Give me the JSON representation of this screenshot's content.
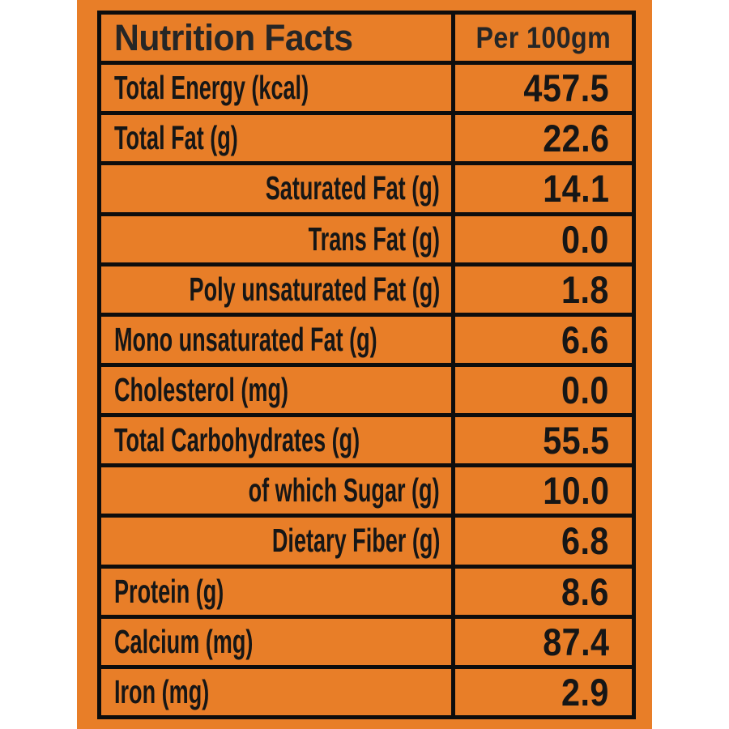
{
  "header": {
    "title": "Nutrition Facts",
    "column": "Per 100gm"
  },
  "rows": [
    {
      "label": "Total Energy (kcal)",
      "value": "457.5",
      "indent": false
    },
    {
      "label": "Total Fat (g)",
      "value": "22.6",
      "indent": false
    },
    {
      "label": "Saturated Fat (g)",
      "value": "14.1",
      "indent": true
    },
    {
      "label": "Trans Fat (g)",
      "value": "0.0",
      "indent": true
    },
    {
      "label": "Poly unsaturated Fat (g)",
      "value": "1.8",
      "indent": true
    },
    {
      "label": "Mono unsaturated Fat (g)",
      "value": "6.6",
      "indent": false
    },
    {
      "label": "Cholesterol (mg)",
      "value": "0.0",
      "indent": false
    },
    {
      "label": "Total Carbohydrates (g)",
      "value": "55.5",
      "indent": false
    },
    {
      "label": "of which Sugar (g)",
      "value": "10.0",
      "indent": true
    },
    {
      "label": "Dietary Fiber (g)",
      "value": "6.8",
      "indent": true
    },
    {
      "label": "Protein (g)",
      "value": "8.6",
      "indent": false
    },
    {
      "label": "Calcium (mg)",
      "value": "87.4",
      "indent": false
    },
    {
      "label": "Iron (mg)",
      "value": "2.9",
      "indent": false
    }
  ],
  "colors": {
    "panel_orange": "#E87E28",
    "line_black": "#0D0D0D",
    "text_dark": "#161616",
    "text_header": "#262626"
  }
}
